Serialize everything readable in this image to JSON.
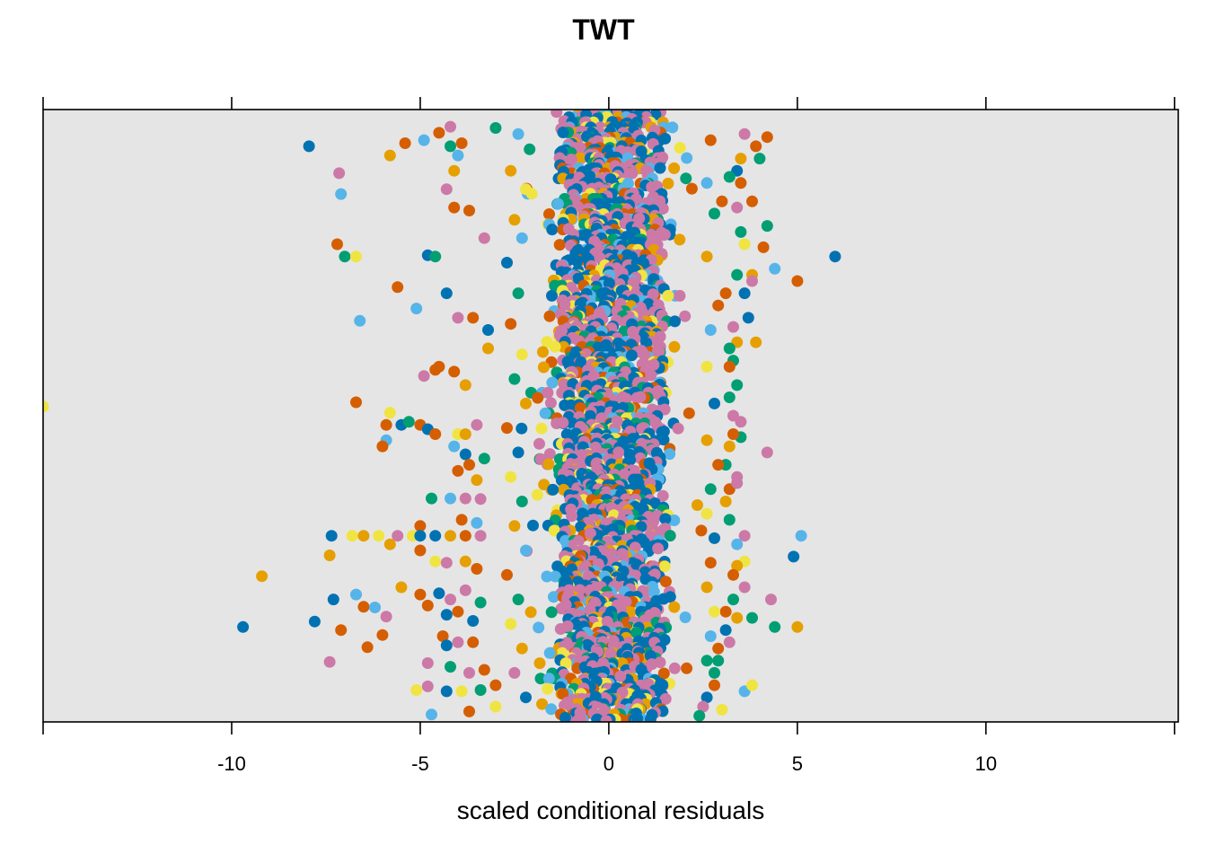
{
  "chart_data": {
    "type": "scatter",
    "title": "TWT",
    "xlabel": "scaled conditional residuals",
    "ylabel": "",
    "xlim": [
      -15.0,
      15.1
    ],
    "ylim": [
      0,
      1
    ],
    "x_ticks": [
      -15,
      -10,
      -5,
      0,
      5,
      10,
      15
    ],
    "x_tick_labels": [
      "",
      "-10",
      "-5",
      "0",
      "5",
      "10",
      ""
    ],
    "grid": false,
    "background": "#e5e5e5",
    "series_colors": [
      "#0072B2",
      "#CC79A7",
      "#009E73",
      "#E69F00",
      "#D55E00",
      "#56B4E9",
      "#F0E442"
    ],
    "points": [
      [
        -7.95,
        0.94,
        0
      ],
      [
        -7.15,
        0.896,
        1
      ],
      [
        -7.1,
        0.862,
        5
      ],
      [
        -7.2,
        0.78,
        4
      ],
      [
        -7.0,
        0.76,
        2
      ],
      [
        -6.7,
        0.76,
        6
      ],
      [
        -5.4,
        0.945,
        4
      ],
      [
        -5.8,
        0.925,
        3
      ],
      [
        -4.9,
        0.95,
        5
      ],
      [
        -4.5,
        0.962,
        4
      ],
      [
        -4.2,
        0.972,
        1
      ],
      [
        -4.2,
        0.94,
        2
      ],
      [
        -4.0,
        0.925,
        5
      ],
      [
        -3.9,
        0.945,
        4
      ],
      [
        -4.1,
        0.9,
        3
      ],
      [
        -3.0,
        0.97,
        2
      ],
      [
        -4.3,
        0.87,
        1
      ],
      [
        -4.1,
        0.84,
        4
      ],
      [
        -3.7,
        0.835,
        4
      ],
      [
        -3.3,
        0.79,
        1
      ],
      [
        -5.6,
        0.71,
        4
      ],
      [
        -4.8,
        0.762,
        0
      ],
      [
        -4.6,
        0.76,
        2
      ],
      [
        -4.3,
        0.7,
        0
      ],
      [
        -5.1,
        0.675,
        5
      ],
      [
        -6.6,
        0.655,
        5
      ],
      [
        -4.0,
        0.66,
        1
      ],
      [
        -3.6,
        0.66,
        4
      ],
      [
        -3.2,
        0.64,
        0
      ],
      [
        -3.2,
        0.61,
        3
      ],
      [
        -4.5,
        0.58,
        4
      ],
      [
        -4.9,
        0.565,
        1
      ],
      [
        -4.6,
        0.575,
        4
      ],
      [
        -4.1,
        0.572,
        4
      ],
      [
        -3.8,
        0.55,
        3
      ],
      [
        -6.7,
        0.522,
        4
      ],
      [
        -5.8,
        0.505,
        6
      ],
      [
        -5.9,
        0.485,
        4
      ],
      [
        -5.5,
        0.485,
        0
      ],
      [
        -5.3,
        0.49,
        2
      ],
      [
        -5.0,
        0.485,
        4
      ],
      [
        -4.8,
        0.478,
        0
      ],
      [
        -4.6,
        0.47,
        4
      ],
      [
        -4.0,
        0.47,
        6
      ],
      [
        -3.8,
        0.47,
        3
      ],
      [
        -3.5,
        0.485,
        1
      ],
      [
        -5.9,
        0.46,
        5
      ],
      [
        -6.0,
        0.45,
        4
      ],
      [
        -4.1,
        0.45,
        5
      ],
      [
        -3.8,
        0.437,
        0
      ],
      [
        -3.3,
        0.43,
        2
      ],
      [
        -4.0,
        0.41,
        4
      ],
      [
        -3.5,
        0.395,
        3
      ],
      [
        -3.7,
        0.42,
        4
      ],
      [
        -4.7,
        0.365,
        2
      ],
      [
        -4.2,
        0.365,
        5
      ],
      [
        -3.8,
        0.365,
        1
      ],
      [
        -3.4,
        0.364,
        1
      ],
      [
        -5.0,
        0.32,
        4
      ],
      [
        -3.9,
        0.33,
        4
      ],
      [
        -3.5,
        0.325,
        5
      ],
      [
        -7.35,
        0.304,
        0
      ],
      [
        -6.8,
        0.304,
        6
      ],
      [
        -6.5,
        0.304,
        3
      ],
      [
        -6.1,
        0.304,
        6
      ],
      [
        -5.6,
        0.304,
        1
      ],
      [
        -5.2,
        0.304,
        6
      ],
      [
        -5.0,
        0.304,
        0
      ],
      [
        -4.6,
        0.304,
        0
      ],
      [
        -4.2,
        0.304,
        3
      ],
      [
        -3.8,
        0.304,
        4
      ],
      [
        -3.4,
        0.304,
        1
      ],
      [
        -5.8,
        0.29,
        3
      ],
      [
        -7.4,
        0.272,
        3
      ],
      [
        -5.0,
        0.28,
        4
      ],
      [
        -4.6,
        0.262,
        6
      ],
      [
        -4.3,
        0.26,
        1
      ],
      [
        -3.8,
        0.262,
        3
      ],
      [
        -3.5,
        0.25,
        4
      ],
      [
        -9.2,
        0.238,
        3
      ],
      [
        -5.5,
        0.22,
        3
      ],
      [
        -5.0,
        0.208,
        4
      ],
      [
        -4.5,
        0.21,
        0
      ],
      [
        -4.2,
        0.2,
        1
      ],
      [
        -3.8,
        0.215,
        1
      ],
      [
        -3.4,
        0.195,
        2
      ],
      [
        -7.3,
        0.2,
        0
      ],
      [
        -6.7,
        0.208,
        5
      ],
      [
        -6.5,
        0.188,
        4
      ],
      [
        -6.2,
        0.187,
        5
      ],
      [
        -5.9,
        0.172,
        1
      ],
      [
        -4.8,
        0.19,
        4
      ],
      [
        -4.3,
        0.175,
        0
      ],
      [
        -4.0,
        0.18,
        4
      ],
      [
        -3.6,
        0.165,
        0
      ],
      [
        -9.7,
        0.155,
        0
      ],
      [
        -7.8,
        0.164,
        0
      ],
      [
        -7.1,
        0.15,
        4
      ],
      [
        -6.0,
        0.142,
        4
      ],
      [
        -4.4,
        0.14,
        4
      ],
      [
        -4.3,
        0.125,
        0
      ],
      [
        -4.0,
        0.13,
        1
      ],
      [
        -3.6,
        0.13,
        4
      ],
      [
        -6.4,
        0.122,
        4
      ],
      [
        -7.4,
        0.098,
        1
      ],
      [
        -4.8,
        0.096,
        1
      ],
      [
        -4.2,
        0.09,
        2
      ],
      [
        -3.7,
        0.08,
        1
      ],
      [
        -3.3,
        0.085,
        4
      ],
      [
        -5.1,
        0.052,
        6
      ],
      [
        -4.8,
        0.058,
        1
      ],
      [
        -4.3,
        0.05,
        0
      ],
      [
        -3.9,
        0.05,
        6
      ],
      [
        -3.4,
        0.052,
        2
      ],
      [
        -3.0,
        0.06,
        4
      ],
      [
        -4.7,
        0.012,
        5
      ],
      [
        -3.7,
        0.017,
        4
      ],
      [
        -3.0,
        0.025,
        6
      ],
      [
        -15.0,
        0.515,
        6
      ],
      [
        -2.4,
        0.96,
        5
      ],
      [
        -2.1,
        0.935,
        2
      ],
      [
        -2.6,
        0.9,
        3
      ],
      [
        -2.2,
        0.87,
        6
      ],
      [
        -2.5,
        0.82,
        3
      ],
      [
        -2.3,
        0.79,
        5
      ],
      [
        -2.7,
        0.75,
        0
      ],
      [
        -2.4,
        0.7,
        2
      ],
      [
        -2.6,
        0.65,
        4
      ],
      [
        -2.3,
        0.6,
        6
      ],
      [
        -2.5,
        0.56,
        2
      ],
      [
        -2.2,
        0.52,
        3
      ],
      [
        -2.7,
        0.48,
        4
      ],
      [
        -2.4,
        0.44,
        0
      ],
      [
        -2.6,
        0.4,
        6
      ],
      [
        -2.3,
        0.36,
        2
      ],
      [
        -2.5,
        0.32,
        3
      ],
      [
        -2.2,
        0.28,
        5
      ],
      [
        -2.7,
        0.24,
        4
      ],
      [
        -2.4,
        0.2,
        2
      ],
      [
        -2.6,
        0.16,
        6
      ],
      [
        -2.3,
        0.12,
        3
      ],
      [
        -2.5,
        0.08,
        1
      ],
      [
        -2.2,
        0.04,
        0
      ],
      [
        6.0,
        0.76,
        0
      ],
      [
        5.1,
        0.304,
        5
      ],
      [
        5.0,
        0.155,
        3
      ],
      [
        4.9,
        0.27,
        0
      ],
      [
        5.0,
        0.72,
        4
      ],
      [
        4.4,
        0.74,
        5
      ],
      [
        4.3,
        0.2,
        1
      ],
      [
        4.4,
        0.155,
        2
      ],
      [
        4.2,
        0.44,
        1
      ],
      [
        3.8,
        0.17,
        2
      ],
      [
        4.0,
        0.92,
        2
      ],
      [
        3.6,
        0.96,
        1
      ],
      [
        3.9,
        0.94,
        4
      ],
      [
        4.2,
        0.955,
        4
      ],
      [
        3.5,
        0.92,
        3
      ],
      [
        3.4,
        0.9,
        0
      ],
      [
        3.5,
        0.88,
        4
      ],
      [
        3.2,
        0.89,
        2
      ],
      [
        3.4,
        0.84,
        1
      ],
      [
        3.0,
        0.85,
        4
      ],
      [
        3.8,
        0.85,
        4
      ],
      [
        3.5,
        0.8,
        2
      ],
      [
        4.2,
        0.81,
        2
      ],
      [
        3.6,
        0.78,
        6
      ],
      [
        4.1,
        0.775,
        4
      ],
      [
        3.8,
        0.73,
        3
      ],
      [
        3.8,
        0.72,
        1
      ],
      [
        3.6,
        0.7,
        0
      ],
      [
        3.4,
        0.73,
        2
      ],
      [
        3.1,
        0.7,
        4
      ],
      [
        3.7,
        0.66,
        0
      ],
      [
        3.3,
        0.645,
        1
      ],
      [
        3.4,
        0.62,
        3
      ],
      [
        3.2,
        0.61,
        2
      ],
      [
        3.9,
        0.62,
        3
      ],
      [
        3.3,
        0.59,
        2
      ],
      [
        3.2,
        0.58,
        4
      ],
      [
        3.4,
        0.55,
        2
      ],
      [
        3.2,
        0.53,
        2
      ],
      [
        3.5,
        0.49,
        1
      ],
      [
        3.3,
        0.5,
        1
      ],
      [
        3.5,
        0.465,
        2
      ],
      [
        3.3,
        0.47,
        4
      ],
      [
        3.2,
        0.45,
        3
      ],
      [
        3.1,
        0.42,
        2
      ],
      [
        3.4,
        0.4,
        1
      ],
      [
        3.2,
        0.38,
        4
      ],
      [
        3.1,
        0.36,
        3
      ],
      [
        3.2,
        0.33,
        2
      ],
      [
        3.4,
        0.39,
        1
      ],
      [
        3.6,
        0.304,
        1
      ],
      [
        3.4,
        0.29,
        5
      ],
      [
        3.6,
        0.262,
        6
      ],
      [
        3.4,
        0.255,
        3
      ],
      [
        3.3,
        0.24,
        4
      ],
      [
        3.6,
        0.22,
        1
      ],
      [
        3.3,
        0.2,
        2
      ],
      [
        3.1,
        0.18,
        4
      ],
      [
        3.4,
        0.17,
        3
      ],
      [
        3.1,
        0.15,
        0
      ],
      [
        3.2,
        0.13,
        1
      ],
      [
        2.9,
        0.12,
        4
      ],
      [
        2.9,
        0.1,
        2
      ],
      [
        2.8,
        0.08,
        2
      ],
      [
        2.8,
        0.06,
        4
      ],
      [
        2.6,
        0.04,
        0
      ],
      [
        2.5,
        0.025,
        1
      ],
      [
        3.6,
        0.05,
        5
      ],
      [
        3.8,
        0.06,
        6
      ],
      [
        3.0,
        0.02,
        6
      ],
      [
        2.4,
        0.01,
        2
      ],
      [
        2.7,
        0.95,
        4
      ],
      [
        2.6,
        0.88,
        5
      ],
      [
        2.8,
        0.83,
        2
      ],
      [
        2.6,
        0.76,
        3
      ],
      [
        2.9,
        0.68,
        4
      ],
      [
        2.7,
        0.64,
        5
      ],
      [
        2.6,
        0.58,
        6
      ],
      [
        2.8,
        0.52,
        0
      ],
      [
        2.6,
        0.46,
        3
      ],
      [
        2.9,
        0.42,
        4
      ],
      [
        2.7,
        0.38,
        2
      ],
      [
        2.6,
        0.34,
        6
      ],
      [
        2.8,
        0.3,
        0
      ],
      [
        2.7,
        0.26,
        4
      ],
      [
        2.6,
        0.22,
        3
      ],
      [
        2.8,
        0.18,
        6
      ],
      [
        2.7,
        0.14,
        5
      ],
      [
        2.6,
        0.1,
        2
      ]
    ]
  }
}
